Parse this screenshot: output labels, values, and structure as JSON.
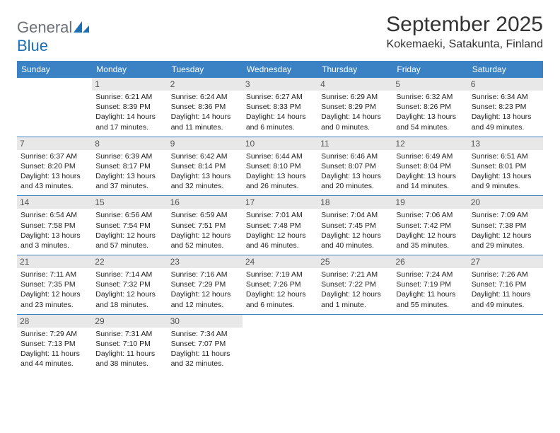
{
  "brand": {
    "general": "General",
    "blue": "Blue"
  },
  "header": {
    "month_title": "September 2025",
    "location": "Kokemaeki, Satakunta, Finland"
  },
  "styling": {
    "header_bg": "#3b82c4",
    "header_text": "#ffffff",
    "daynum_bg": "#e8e8e8",
    "daynum_text": "#555555",
    "body_text": "#222222",
    "row_border": "#3b82c4",
    "page_bg": "#ffffff",
    "month_title_fontsize": 30,
    "location_fontsize": 16,
    "dow_fontsize": 12,
    "daynum_fontsize": 12,
    "dayline_fontsize": 10.5
  },
  "dow": [
    "Sunday",
    "Monday",
    "Tuesday",
    "Wednesday",
    "Thursday",
    "Friday",
    "Saturday"
  ],
  "weeks": [
    [
      null,
      {
        "n": "1",
        "sr": "Sunrise: 6:21 AM",
        "ss": "Sunset: 8:39 PM",
        "d1": "Daylight: 14 hours",
        "d2": "and 17 minutes."
      },
      {
        "n": "2",
        "sr": "Sunrise: 6:24 AM",
        "ss": "Sunset: 8:36 PM",
        "d1": "Daylight: 14 hours",
        "d2": "and 11 minutes."
      },
      {
        "n": "3",
        "sr": "Sunrise: 6:27 AM",
        "ss": "Sunset: 8:33 PM",
        "d1": "Daylight: 14 hours",
        "d2": "and 6 minutes."
      },
      {
        "n": "4",
        "sr": "Sunrise: 6:29 AM",
        "ss": "Sunset: 8:29 PM",
        "d1": "Daylight: 14 hours",
        "d2": "and 0 minutes."
      },
      {
        "n": "5",
        "sr": "Sunrise: 6:32 AM",
        "ss": "Sunset: 8:26 PM",
        "d1": "Daylight: 13 hours",
        "d2": "and 54 minutes."
      },
      {
        "n": "6",
        "sr": "Sunrise: 6:34 AM",
        "ss": "Sunset: 8:23 PM",
        "d1": "Daylight: 13 hours",
        "d2": "and 49 minutes."
      }
    ],
    [
      {
        "n": "7",
        "sr": "Sunrise: 6:37 AM",
        "ss": "Sunset: 8:20 PM",
        "d1": "Daylight: 13 hours",
        "d2": "and 43 minutes."
      },
      {
        "n": "8",
        "sr": "Sunrise: 6:39 AM",
        "ss": "Sunset: 8:17 PM",
        "d1": "Daylight: 13 hours",
        "d2": "and 37 minutes."
      },
      {
        "n": "9",
        "sr": "Sunrise: 6:42 AM",
        "ss": "Sunset: 8:14 PM",
        "d1": "Daylight: 13 hours",
        "d2": "and 32 minutes."
      },
      {
        "n": "10",
        "sr": "Sunrise: 6:44 AM",
        "ss": "Sunset: 8:10 PM",
        "d1": "Daylight: 13 hours",
        "d2": "and 26 minutes."
      },
      {
        "n": "11",
        "sr": "Sunrise: 6:46 AM",
        "ss": "Sunset: 8:07 PM",
        "d1": "Daylight: 13 hours",
        "d2": "and 20 minutes."
      },
      {
        "n": "12",
        "sr": "Sunrise: 6:49 AM",
        "ss": "Sunset: 8:04 PM",
        "d1": "Daylight: 13 hours",
        "d2": "and 14 minutes."
      },
      {
        "n": "13",
        "sr": "Sunrise: 6:51 AM",
        "ss": "Sunset: 8:01 PM",
        "d1": "Daylight: 13 hours",
        "d2": "and 9 minutes."
      }
    ],
    [
      {
        "n": "14",
        "sr": "Sunrise: 6:54 AM",
        "ss": "Sunset: 7:58 PM",
        "d1": "Daylight: 13 hours",
        "d2": "and 3 minutes."
      },
      {
        "n": "15",
        "sr": "Sunrise: 6:56 AM",
        "ss": "Sunset: 7:54 PM",
        "d1": "Daylight: 12 hours",
        "d2": "and 57 minutes."
      },
      {
        "n": "16",
        "sr": "Sunrise: 6:59 AM",
        "ss": "Sunset: 7:51 PM",
        "d1": "Daylight: 12 hours",
        "d2": "and 52 minutes."
      },
      {
        "n": "17",
        "sr": "Sunrise: 7:01 AM",
        "ss": "Sunset: 7:48 PM",
        "d1": "Daylight: 12 hours",
        "d2": "and 46 minutes."
      },
      {
        "n": "18",
        "sr": "Sunrise: 7:04 AM",
        "ss": "Sunset: 7:45 PM",
        "d1": "Daylight: 12 hours",
        "d2": "and 40 minutes."
      },
      {
        "n": "19",
        "sr": "Sunrise: 7:06 AM",
        "ss": "Sunset: 7:42 PM",
        "d1": "Daylight: 12 hours",
        "d2": "and 35 minutes."
      },
      {
        "n": "20",
        "sr": "Sunrise: 7:09 AM",
        "ss": "Sunset: 7:38 PM",
        "d1": "Daylight: 12 hours",
        "d2": "and 29 minutes."
      }
    ],
    [
      {
        "n": "21",
        "sr": "Sunrise: 7:11 AM",
        "ss": "Sunset: 7:35 PM",
        "d1": "Daylight: 12 hours",
        "d2": "and 23 minutes."
      },
      {
        "n": "22",
        "sr": "Sunrise: 7:14 AM",
        "ss": "Sunset: 7:32 PM",
        "d1": "Daylight: 12 hours",
        "d2": "and 18 minutes."
      },
      {
        "n": "23",
        "sr": "Sunrise: 7:16 AM",
        "ss": "Sunset: 7:29 PM",
        "d1": "Daylight: 12 hours",
        "d2": "and 12 minutes."
      },
      {
        "n": "24",
        "sr": "Sunrise: 7:19 AM",
        "ss": "Sunset: 7:26 PM",
        "d1": "Daylight: 12 hours",
        "d2": "and 6 minutes."
      },
      {
        "n": "25",
        "sr": "Sunrise: 7:21 AM",
        "ss": "Sunset: 7:22 PM",
        "d1": "Daylight: 12 hours",
        "d2": "and 1 minute."
      },
      {
        "n": "26",
        "sr": "Sunrise: 7:24 AM",
        "ss": "Sunset: 7:19 PM",
        "d1": "Daylight: 11 hours",
        "d2": "and 55 minutes."
      },
      {
        "n": "27",
        "sr": "Sunrise: 7:26 AM",
        "ss": "Sunset: 7:16 PM",
        "d1": "Daylight: 11 hours",
        "d2": "and 49 minutes."
      }
    ],
    [
      {
        "n": "28",
        "sr": "Sunrise: 7:29 AM",
        "ss": "Sunset: 7:13 PM",
        "d1": "Daylight: 11 hours",
        "d2": "and 44 minutes."
      },
      {
        "n": "29",
        "sr": "Sunrise: 7:31 AM",
        "ss": "Sunset: 7:10 PM",
        "d1": "Daylight: 11 hours",
        "d2": "and 38 minutes."
      },
      {
        "n": "30",
        "sr": "Sunrise: 7:34 AM",
        "ss": "Sunset: 7:07 PM",
        "d1": "Daylight: 11 hours",
        "d2": "and 32 minutes."
      },
      null,
      null,
      null,
      null
    ]
  ]
}
